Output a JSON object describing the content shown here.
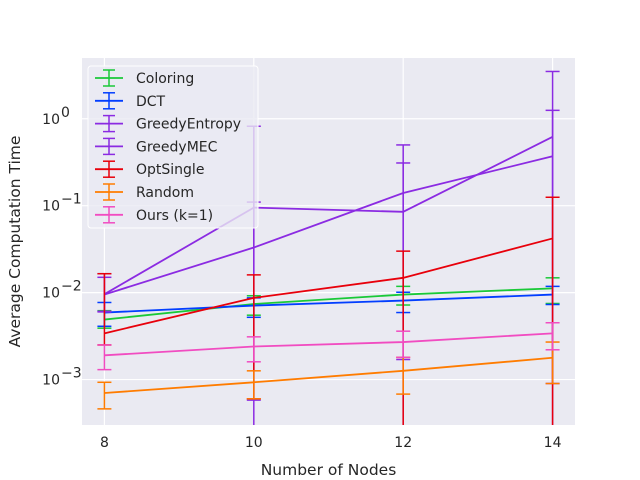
{
  "chart_data": {
    "type": "line",
    "title": "",
    "xlabel": "Number of Nodes",
    "ylabel": "Average Computation Time",
    "y_scale": "log",
    "xlim": [
      7.7,
      14.3
    ],
    "ylim": [
      0.0003,
      5.0
    ],
    "grid": true,
    "legend_position": "top-left",
    "x_ticks": [
      8,
      10,
      12,
      14
    ],
    "x_tick_labels": [
      "8",
      "10",
      "12",
      "14"
    ],
    "y_ticks": [
      0.001,
      0.01,
      0.1,
      1
    ],
    "y_tick_labels": [
      {
        "base": "10",
        "exp": "−3"
      },
      {
        "base": "10",
        "exp": "−2"
      },
      {
        "base": "10",
        "exp": "−1"
      },
      {
        "base": "10",
        "exp": "0"
      }
    ],
    "x": [
      8,
      10,
      12,
      14
    ],
    "series": [
      {
        "name": "Coloring",
        "color": "#1ac938",
        "values": [
          0.0049,
          0.0074,
          0.0095,
          0.0112
        ],
        "err_low": [
          0.0039,
          0.0055,
          0.0072,
          0.0075
        ],
        "err_high": [
          0.0062,
          0.0092,
          0.0118,
          0.0148
        ]
      },
      {
        "name": "DCT",
        "color": "#023eff",
        "values": [
          0.0059,
          0.0071,
          0.0081,
          0.0095
        ],
        "err_low": [
          0.0041,
          0.0052,
          0.0059,
          0.0073
        ],
        "err_high": [
          0.0077,
          0.0087,
          0.0101,
          0.0118
        ]
      },
      {
        "name": "GreedyEntropy",
        "color": "#8b2be2",
        "values": [
          0.0095,
          0.033,
          0.14,
          0.37
        ],
        "err_low": [
          0.0061,
          0.00058,
          0.0017,
          0.0009
        ],
        "err_high": [
          0.0165,
          0.11,
          0.5,
          1.25
        ]
      },
      {
        "name": "GreedyMEC",
        "color": "#8b2be2",
        "values": [
          0.0096,
          0.095,
          0.085,
          0.62
        ],
        "err_low": [
          0.006,
          0.0003,
          0.0003,
          0.0003
        ],
        "err_high": [
          0.015,
          0.82,
          0.31,
          3.5
        ]
      },
      {
        "name": "OptSingle",
        "color": "#e8000b",
        "values": [
          0.0034,
          0.0087,
          0.0148,
          0.042
        ],
        "err_low": [
          0.0025,
          0.0006,
          0.0003,
          0.0003
        ],
        "err_high": [
          0.0165,
          0.016,
          0.03,
          0.125
        ]
      },
      {
        "name": "Random",
        "color": "#ff7c00",
        "values": [
          0.0007,
          0.00093,
          0.00126,
          0.00178
        ],
        "err_low": [
          0.00046,
          0.0006,
          0.00068,
          0.0009
        ],
        "err_high": [
          0.00093,
          0.00126,
          0.0018,
          0.0027
        ]
      },
      {
        "name": "Ours (k=1)",
        "color": "#f14cc1",
        "values": [
          0.0019,
          0.0024,
          0.0027,
          0.0034
        ],
        "err_low": [
          0.0013,
          0.0016,
          0.0018,
          0.0022
        ],
        "err_high": [
          0.0025,
          0.0031,
          0.0036,
          0.0045
        ]
      }
    ]
  }
}
